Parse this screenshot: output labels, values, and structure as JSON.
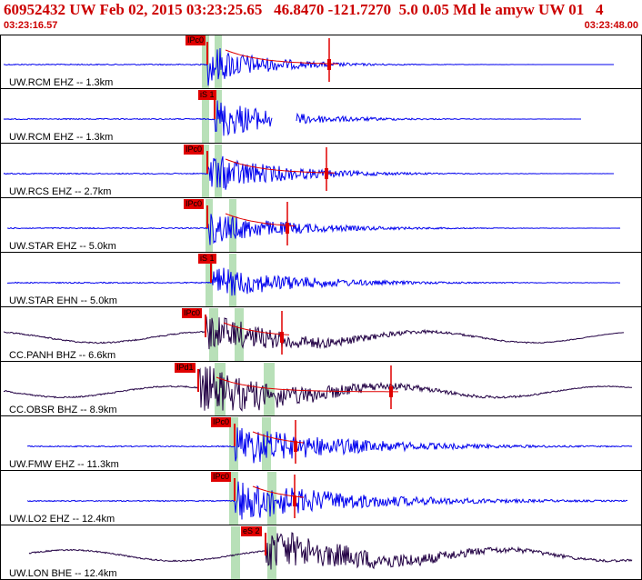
{
  "header": {
    "title": "60952432 UW Feb 02, 2015 03:23:25.65   46.8470 -121.7270  5.0 0.05 Md le amyw UW 01   4",
    "start_time": "03:23:16.57",
    "end_time": "03:23:48.00"
  },
  "colors": {
    "header_text": "#cc0000",
    "trace_blue": "#0000ee",
    "trace_dark": "#220044",
    "pick_red": "#e00000",
    "window_green": "#b8e0b8",
    "panel_border": "#000000"
  },
  "traces": [
    {
      "label": "UW.RCM EHZ -- 1.3km",
      "pick_label": "IPc0",
      "color": "blue",
      "gaps": []
    },
    {
      "label": "UW.RCM EHZ -- 1.3km",
      "pick_label": "iS 1",
      "color": "blue",
      "gaps": [
        [
          300,
          325
        ],
        [
          640,
          660
        ],
        [
          663,
          668
        ]
      ]
    },
    {
      "label": "UW.RCS EHZ -- 2.7km",
      "pick_label": "IPc0",
      "color": "blue",
      "gaps": []
    },
    {
      "label": "UW.STAR EHZ -- 5.0km",
      "pick_label": "IPc0",
      "color": "blue",
      "gaps": []
    },
    {
      "label": "UW.STAR EHN -- 5.0km",
      "pick_label": "iS 1",
      "color": "blue",
      "gaps": []
    },
    {
      "label": "CC.PANH BHZ -- 6.6km",
      "pick_label": "IPc0",
      "color": "dark",
      "gaps": []
    },
    {
      "label": "CC.OBSR BHZ -- 8.9km",
      "pick_label": "IPd1",
      "color": "dark",
      "gaps": []
    },
    {
      "label": "UW.FMW EHZ -- 11.3km",
      "pick_label": "IPc0",
      "color": "blue",
      "gaps": []
    },
    {
      "label": "UW.LO2 EHZ -- 12.4km",
      "pick_label": "IPc0",
      "color": "blue",
      "gaps": []
    },
    {
      "label": "UW.LON BHE -- 12.4km",
      "pick_label": "eS 2",
      "color": "dark",
      "gaps": []
    }
  ]
}
